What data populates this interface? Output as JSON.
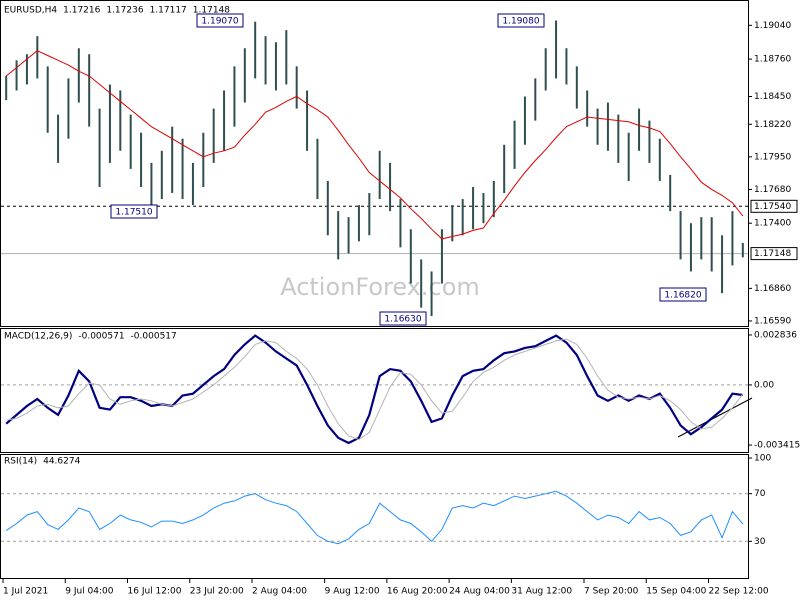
{
  "chart_data": [
    {
      "type": "bar-range",
      "title": "EURUSD,H4",
      "header_values": [
        1.17216,
        1.17236,
        1.17117,
        1.17148
      ],
      "watermark": "ActionForex.com",
      "color": "#2f4f4f",
      "high": [
        1.1862,
        1.1875,
        1.188,
        1.1895,
        1.187,
        1.183,
        1.186,
        1.1885,
        1.188,
        1.1835,
        1.1855,
        1.185,
        1.183,
        1.1815,
        1.179,
        1.18,
        1.182,
        1.181,
        1.179,
        1.1815,
        1.1835,
        1.185,
        1.187,
        1.1885,
        1.1907,
        1.1895,
        1.189,
        1.19,
        1.187,
        1.185,
        1.181,
        1.1775,
        1.175,
        1.1745,
        1.1755,
        1.1765,
        1.18,
        1.179,
        1.176,
        1.1735,
        1.171,
        1.17,
        1.1735,
        1.1755,
        1.176,
        1.177,
        1.1765,
        1.1775,
        1.1805,
        1.1825,
        1.1845,
        1.186,
        1.1885,
        1.1908,
        1.1885,
        1.187,
        1.185,
        1.1835,
        1.184,
        1.183,
        1.1815,
        1.1835,
        1.1825,
        1.181,
        1.178,
        1.175,
        1.174,
        1.1745,
        1.1745,
        1.173,
        1.175,
        1.17236
      ],
      "low": [
        1.1842,
        1.185,
        1.1855,
        1.186,
        1.1815,
        1.179,
        1.181,
        1.184,
        1.182,
        1.177,
        1.179,
        1.18,
        1.1785,
        1.177,
        1.1751,
        1.176,
        1.1765,
        1.176,
        1.1755,
        1.177,
        1.179,
        1.18,
        1.182,
        1.184,
        1.186,
        1.1855,
        1.185,
        1.1855,
        1.1835,
        1.18,
        1.176,
        1.173,
        1.171,
        1.1715,
        1.1725,
        1.173,
        1.176,
        1.175,
        1.172,
        1.169,
        1.167,
        1.1663,
        1.169,
        1.1725,
        1.173,
        1.1735,
        1.174,
        1.1745,
        1.1765,
        1.1785,
        1.1805,
        1.1825,
        1.185,
        1.186,
        1.1855,
        1.1835,
        1.182,
        1.1805,
        1.18,
        1.179,
        1.1775,
        1.18,
        1.179,
        1.1775,
        1.175,
        1.171,
        1.17,
        1.171,
        1.17,
        1.1682,
        1.1705,
        1.17117
      ],
      "ma": {
        "color": "#e00000",
        "values": [
          1.1862,
          1.1869,
          1.1876,
          1.1883,
          1.1879,
          1.1875,
          1.1871,
          1.1866,
          1.1862,
          1.1855,
          1.1848,
          1.1841,
          1.1834,
          1.1827,
          1.182,
          1.1815,
          1.181,
          1.1805,
          1.18,
          1.1795,
          1.1798,
          1.18,
          1.1803,
          1.1813,
          1.1822,
          1.1832,
          1.1836,
          1.1841,
          1.1845,
          1.1839,
          1.1834,
          1.1828,
          1.1817,
          1.1805,
          1.1794,
          1.1782,
          1.1775,
          1.1768,
          1.1761,
          1.1752,
          1.1744,
          1.1735,
          1.1727,
          1.1729,
          1.1731,
          1.1734,
          1.1736,
          1.1748,
          1.1759,
          1.1771,
          1.1782,
          1.1792,
          1.1801,
          1.1811,
          1.182,
          1.1824,
          1.1828,
          1.1827,
          1.1826,
          1.1825,
          1.1824,
          1.1821,
          1.1819,
          1.1816,
          1.1806,
          1.1795,
          1.1785,
          1.1774,
          1.1768,
          1.1763,
          1.1757,
          1.1746
        ]
      },
      "ylim": [
        1.16548,
        1.19225
      ],
      "yticks": [
        {
          "value": 1.1904,
          "label": "1.19040"
        },
        {
          "value": 1.1876,
          "label": "1.18760"
        },
        {
          "value": 1.1845,
          "label": "1.18450"
        },
        {
          "value": 1.1822,
          "label": "1.18220"
        },
        {
          "value": 1.1795,
          "label": "1.17950"
        },
        {
          "value": 1.1768,
          "label": "1.17680"
        },
        {
          "value": 1.174,
          "label": "1.17400"
        },
        {
          "value": 1.1686,
          "label": "1.16860"
        },
        {
          "value": 1.1659,
          "label": "1.16590"
        }
      ],
      "hlines": [
        {
          "value": 1.1754,
          "label": "1.17540",
          "style": "dashed"
        },
        {
          "value": 1.17148,
          "label": "1.17148",
          "style": "solid"
        }
      ],
      "annotations": [
        {
          "value": 1.1907,
          "label": "1.19070"
        },
        {
          "value": 1.1908,
          "label": "1.19080"
        },
        {
          "value": 1.1751,
          "label": "1.17510"
        },
        {
          "value": 1.1663,
          "label": "1.16630"
        },
        {
          "value": 1.1682,
          "label": "1.16820"
        }
      ]
    },
    {
      "type": "line",
      "title": "MACD(12,26,9)",
      "series": [
        {
          "color": "#000080",
          "values": [
            -0.0022,
            -0.0017,
            -0.0012,
            -0.0008,
            -0.0013,
            -0.0017,
            -0.0006,
            0.0008,
            0.0002,
            -0.0013,
            -0.0014,
            -0.0007,
            -0.0007,
            -0.0009,
            -0.0012,
            -0.0011,
            -0.0012,
            -0.0006,
            -0.0005,
            0,
            0.0005,
            0.0009,
            0.0017,
            0.0023,
            0.0028,
            0.0024,
            0.0019,
            0.0015,
            0.0011,
            0,
            -0.0012,
            -0.0023,
            -0.003,
            -0.0033,
            -0.003,
            -0.0017,
            0.0005,
            0.0009,
            0.0008,
            0.0002,
            -0.0009,
            -0.0021,
            -0.0019,
            -0.0006,
            0.0005,
            0.0008,
            0.0009,
            0.0014,
            0.0018,
            0.0019,
            0.0021,
            0.0022,
            0.0025,
            0.0028,
            0.0024,
            0.0017,
            0.0005,
            -0.0006,
            -0.0009,
            -0.0006,
            -0.0009,
            -0.0006,
            -0.0008,
            -0.0005,
            -0.0013,
            -0.0023,
            -0.0028,
            -0.0024,
            -0.0019,
            -0.0014,
            -0.0005,
            -0.000571
          ]
        },
        {
          "color": "#b4b4b4",
          "values": [
            -0.002,
            -0.0019,
            -0.0016,
            -0.0012,
            -0.0011,
            -0.0013,
            -0.0012,
            -0.0005,
            0.0001,
            0,
            -0.0008,
            -0.0011,
            -0.0009,
            -0.0008,
            -0.0009,
            -0.0011,
            -0.0012,
            -0.001,
            -0.0008,
            -0.0004,
            0,
            0.0005,
            0.001,
            0.0016,
            0.0023,
            0.0025,
            0.0024,
            0.0019,
            0.0015,
            0.0009,
            0,
            -0.0012,
            -0.0022,
            -0.0029,
            -0.0031,
            -0.0027,
            -0.0014,
            -0.0001,
            0.0007,
            0.0006,
            0,
            -0.0009,
            -0.0016,
            -0.0015,
            -0.0007,
            0.0002,
            0.0007,
            0.001,
            0.0014,
            0.0017,
            0.0019,
            0.0021,
            0.0023,
            0.0025,
            0.0026,
            0.0023,
            0.0015,
            0.0005,
            -0.0003,
            -0.0007,
            -0.0008,
            -0.0007,
            -0.0008,
            -0.0006,
            -0.0009,
            -0.0014,
            -0.0021,
            -0.0025,
            -0.0024,
            -0.0019,
            -0.0013,
            -0.000517
          ]
        }
      ],
      "ylim": [
        -0.003809,
        0.003061
      ],
      "yticks": [
        0.002836,
        {
          "value": 0,
          "label": "0.00"
        },
        -0.003415
      ],
      "levels": [
        0
      ]
    },
    {
      "type": "line",
      "title": "RSI(14)",
      "categories": [
        "1 Jul 2021",
        null,
        null,
        null,
        null,
        null,
        "9 Jul 04:00",
        null,
        null,
        null,
        null,
        null,
        "16 Jul 12:00",
        null,
        null,
        null,
        null,
        null,
        "23 Jul 20:00",
        null,
        null,
        null,
        null,
        null,
        "2 Aug 04:00",
        null,
        null,
        null,
        null,
        null,
        null,
        "9 Aug 12:00",
        null,
        null,
        null,
        null,
        null,
        "16 Aug 20:00",
        null,
        null,
        null,
        null,
        null,
        "24 Aug 04:00",
        null,
        null,
        null,
        null,
        null,
        "31 Aug 12:00",
        null,
        null,
        null,
        null,
        null,
        null,
        "7 Sep 20:00",
        null,
        null,
        null,
        null,
        null,
        "15 Sep 04:00",
        null,
        null,
        null,
        null,
        null,
        "22 Sep 12:00",
        null,
        null,
        null
      ],
      "series": [
        {
          "color": "#1e90ff",
          "values": [
            39,
            45,
            52,
            55,
            44,
            40,
            48,
            58,
            55,
            40,
            45,
            52,
            48,
            46,
            42,
            47,
            47,
            45,
            48,
            52,
            58,
            62,
            64,
            68,
            70,
            65,
            62,
            60,
            55,
            45,
            35,
            30,
            28,
            32,
            40,
            45,
            62,
            55,
            48,
            45,
            38,
            30,
            40,
            58,
            60,
            58,
            62,
            60,
            64,
            68,
            66,
            68,
            70,
            72,
            68,
            62,
            55,
            48,
            52,
            50,
            45,
            55,
            48,
            50,
            45,
            35,
            38,
            48,
            52,
            33,
            55,
            44.6274
          ]
        }
      ],
      "ylim": [
        0,
        101.7
      ],
      "yticks": [
        100,
        70,
        30
      ],
      "levels": [
        70,
        30
      ]
    }
  ]
}
